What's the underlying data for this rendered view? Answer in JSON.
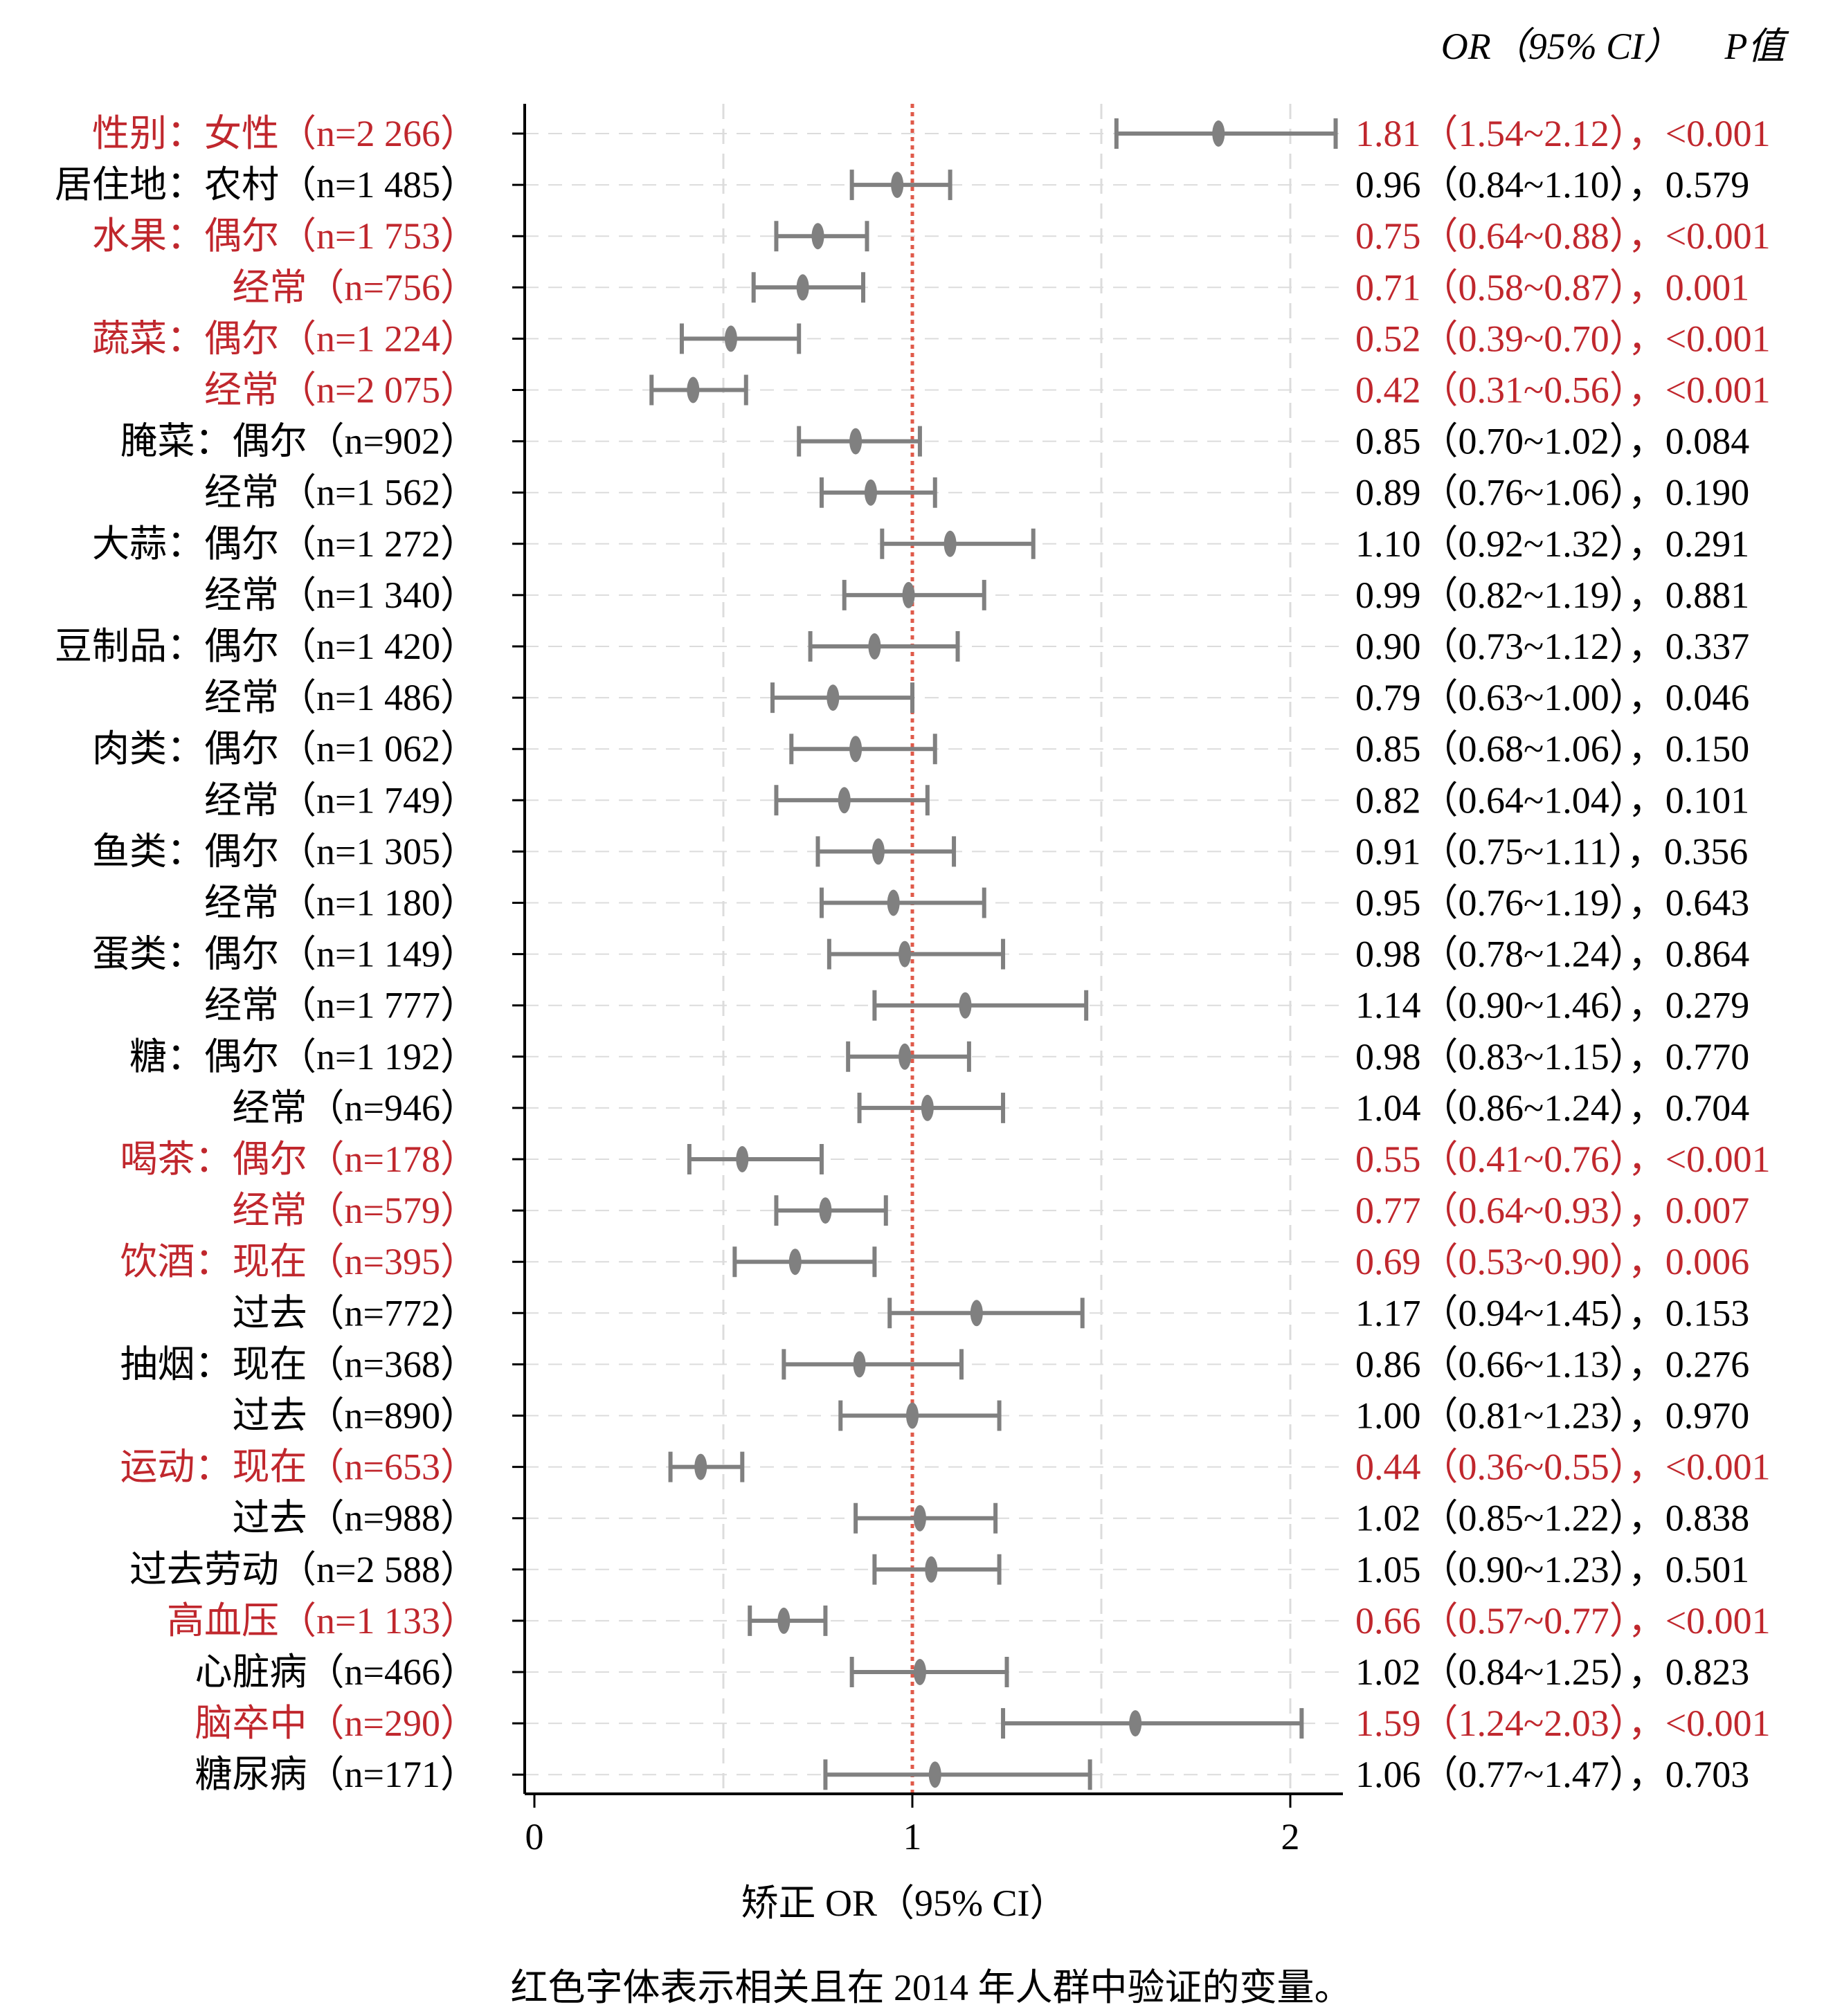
{
  "chart_data": {
    "type": "forest",
    "xlabel": "矫正 OR（95% CI）",
    "xlim": [
      0,
      2.15
    ],
    "xticks": [
      0,
      1,
      2
    ],
    "reference_line": 1,
    "header_or": "OR（95% CI）",
    "header_p": "P值",
    "caption": "红色字体表示相关且在 2014 年人群中验证的变量。",
    "colors": {
      "highlight": "#c0272d",
      "normal": "#000000",
      "marker": "#808080",
      "refline": "#e05a4a",
      "grid": "#dcdcdc"
    },
    "rows": [
      {
        "label": "性别：女性（n=2 266）",
        "or": 1.81,
        "lo": 1.54,
        "hi": 2.12,
        "text": "1.81（1.54~2.12），<0.001",
        "highlight": true
      },
      {
        "label": "居住地：农村（n=1 485）",
        "or": 0.96,
        "lo": 0.84,
        "hi": 1.1,
        "text": "0.96（0.84~1.10），0.579",
        "highlight": false
      },
      {
        "label": "水果：偶尔（n=1 753）",
        "or": 0.75,
        "lo": 0.64,
        "hi": 0.88,
        "text": "0.75（0.64~0.88），<0.001",
        "highlight": true
      },
      {
        "label": "经常（n=756）",
        "or": 0.71,
        "lo": 0.58,
        "hi": 0.87,
        "text": "0.71（0.58~0.87），0.001",
        "highlight": true
      },
      {
        "label": "蔬菜：偶尔（n=1 224）",
        "or": 0.52,
        "lo": 0.39,
        "hi": 0.7,
        "text": "0.52（0.39~0.70），<0.001",
        "highlight": true
      },
      {
        "label": "经常（n=2 075）",
        "or": 0.42,
        "lo": 0.31,
        "hi": 0.56,
        "text": "0.42（0.31~0.56），<0.001",
        "highlight": true
      },
      {
        "label": "腌菜：偶尔（n=902）",
        "or": 0.85,
        "lo": 0.7,
        "hi": 1.02,
        "text": "0.85（0.70~1.02），0.084",
        "highlight": false
      },
      {
        "label": "经常（n=1 562）",
        "or": 0.89,
        "lo": 0.76,
        "hi": 1.06,
        "text": "0.89（0.76~1.06），0.190",
        "highlight": false
      },
      {
        "label": "大蒜：偶尔（n=1 272）",
        "or": 1.1,
        "lo": 0.92,
        "hi": 1.32,
        "text": "1.10（0.92~1.32），0.291",
        "highlight": false
      },
      {
        "label": "经常（n=1 340）",
        "or": 0.99,
        "lo": 0.82,
        "hi": 1.19,
        "text": "0.99（0.82~1.19），0.881",
        "highlight": false
      },
      {
        "label": "豆制品：偶尔（n=1 420）",
        "or": 0.9,
        "lo": 0.73,
        "hi": 1.12,
        "text": "0.90（0.73~1.12），0.337",
        "highlight": false
      },
      {
        "label": "经常（n=1 486）",
        "or": 0.79,
        "lo": 0.63,
        "hi": 1.0,
        "text": "0.79（0.63~1.00），0.046",
        "highlight": false
      },
      {
        "label": "肉类：偶尔（n=1 062）",
        "or": 0.85,
        "lo": 0.68,
        "hi": 1.06,
        "text": "0.85（0.68~1.06），0.150",
        "highlight": false
      },
      {
        "label": "经常（n=1 749）",
        "or": 0.82,
        "lo": 0.64,
        "hi": 1.04,
        "text": "0.82（0.64~1.04），0.101",
        "highlight": false
      },
      {
        "label": "鱼类：偶尔（n=1 305）",
        "or": 0.91,
        "lo": 0.75,
        "hi": 1.11,
        "text": "0.91（0.75~1.11），0.356",
        "highlight": false
      },
      {
        "label": "经常（n=1 180）",
        "or": 0.95,
        "lo": 0.76,
        "hi": 1.19,
        "text": "0.95（0.76~1.19），0.643",
        "highlight": false
      },
      {
        "label": "蛋类：偶尔（n=1 149）",
        "or": 0.98,
        "lo": 0.78,
        "hi": 1.24,
        "text": "0.98（0.78~1.24），0.864",
        "highlight": false
      },
      {
        "label": "经常（n=1 777）",
        "or": 1.14,
        "lo": 0.9,
        "hi": 1.46,
        "text": "1.14（0.90~1.46），0.279",
        "highlight": false
      },
      {
        "label": "糖：偶尔（n=1 192）",
        "or": 0.98,
        "lo": 0.83,
        "hi": 1.15,
        "text": "0.98（0.83~1.15），0.770",
        "highlight": false
      },
      {
        "label": "经常（n=946）",
        "or": 1.04,
        "lo": 0.86,
        "hi": 1.24,
        "text": "1.04（0.86~1.24），0.704",
        "highlight": false
      },
      {
        "label": "喝茶：偶尔（n=178）",
        "or": 0.55,
        "lo": 0.41,
        "hi": 0.76,
        "text": "0.55（0.41~0.76），<0.001",
        "highlight": true
      },
      {
        "label": "经常（n=579）",
        "or": 0.77,
        "lo": 0.64,
        "hi": 0.93,
        "text": "0.77（0.64~0.93），0.007",
        "highlight": true
      },
      {
        "label": "饮酒：现在（n=395）",
        "or": 0.69,
        "lo": 0.53,
        "hi": 0.9,
        "text": "0.69（0.53~0.90），0.006",
        "highlight": true
      },
      {
        "label": "过去（n=772）",
        "or": 1.17,
        "lo": 0.94,
        "hi": 1.45,
        "text": "1.17（0.94~1.45），0.153",
        "highlight": false
      },
      {
        "label": "抽烟：现在（n=368）",
        "or": 0.86,
        "lo": 0.66,
        "hi": 1.13,
        "text": "0.86（0.66~1.13），0.276",
        "highlight": false
      },
      {
        "label": "过去（n=890）",
        "or": 1.0,
        "lo": 0.81,
        "hi": 1.23,
        "text": "1.00（0.81~1.23），0.970",
        "highlight": false
      },
      {
        "label": "运动：现在（n=653）",
        "or": 0.44,
        "lo": 0.36,
        "hi": 0.55,
        "text": "0.44（0.36~0.55），<0.001",
        "highlight": true
      },
      {
        "label": "过去（n=988）",
        "or": 1.02,
        "lo": 0.85,
        "hi": 1.22,
        "text": "1.02（0.85~1.22），0.838",
        "highlight": false
      },
      {
        "label": "过去劳动（n=2 588）",
        "or": 1.05,
        "lo": 0.9,
        "hi": 1.23,
        "text": "1.05（0.90~1.23），0.501",
        "highlight": false
      },
      {
        "label": "高血压（n=1 133）",
        "or": 0.66,
        "lo": 0.57,
        "hi": 0.77,
        "text": "0.66（0.57~0.77），<0.001",
        "highlight": true
      },
      {
        "label": "心脏病（n=466）",
        "or": 1.02,
        "lo": 0.84,
        "hi": 1.25,
        "text": "1.02（0.84~1.25），0.823",
        "highlight": false
      },
      {
        "label": "脑卒中（n=290）",
        "or": 1.59,
        "lo": 1.24,
        "hi": 2.03,
        "text": "1.59（1.24~2.03），<0.001",
        "highlight": true
      },
      {
        "label": "糖尿病（n=171）",
        "or": 1.06,
        "lo": 0.77,
        "hi": 1.47,
        "text": "1.06（0.77~1.47），0.703",
        "highlight": false
      }
    ]
  }
}
